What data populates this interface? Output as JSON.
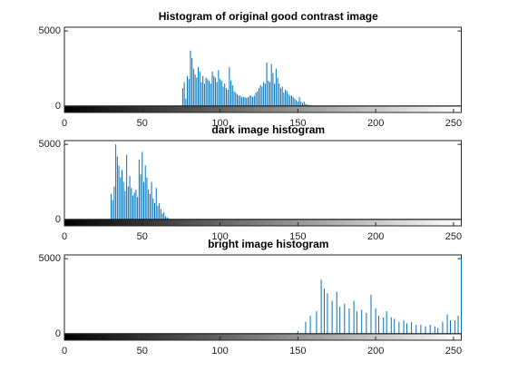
{
  "chart_data": [
    {
      "type": "stem",
      "title": "Histogram of original good contrast image",
      "x": [
        76,
        77,
        78,
        79,
        80,
        81,
        82,
        83,
        84,
        85,
        86,
        87,
        88,
        89,
        90,
        91,
        92,
        93,
        94,
        95,
        96,
        97,
        98,
        99,
        100,
        101,
        102,
        103,
        104,
        105,
        106,
        107,
        108,
        109,
        110,
        111,
        112,
        113,
        114,
        115,
        116,
        117,
        118,
        119,
        120,
        121,
        122,
        123,
        124,
        125,
        126,
        127,
        128,
        129,
        130,
        131,
        132,
        133,
        134,
        135,
        136,
        137,
        138,
        139,
        140,
        141,
        142,
        143,
        144,
        145,
        146,
        147,
        148,
        149,
        150,
        151,
        152,
        153,
        154,
        155,
        156,
        157,
        158,
        159,
        160
      ],
      "values": [
        1200,
        1600,
        500,
        2000,
        1800,
        3700,
        3200,
        2500,
        2100,
        1900,
        2600,
        2300,
        1600,
        2000,
        1500,
        1900,
        1800,
        1700,
        1500,
        2300,
        2000,
        1900,
        1600,
        2400,
        1800,
        1700,
        1300,
        1500,
        1200,
        1100,
        2600,
        1700,
        1400,
        1000,
        900,
        800,
        700,
        700,
        600,
        600,
        600,
        550,
        600,
        700,
        700,
        600,
        700,
        900,
        1000,
        1200,
        1400,
        1300,
        1600,
        1500,
        2900,
        1700,
        1600,
        2800,
        2200,
        1500,
        2500,
        1900,
        1500,
        1200,
        1300,
        900,
        1100,
        1000,
        800,
        700,
        700,
        600,
        500,
        400,
        300,
        600,
        300,
        200,
        300,
        150,
        100,
        80,
        60,
        40,
        20
      ],
      "color": "#0072bd",
      "xlim": [
        0,
        255
      ],
      "ylim": [
        0,
        5250
      ],
      "xticks": [
        0,
        50,
        100,
        150,
        200,
        250
      ],
      "yticks": [
        0,
        5000
      ]
    },
    {
      "type": "stem",
      "title": "dark image histogram",
      "x": [
        30,
        31,
        32,
        33,
        34,
        35,
        36,
        37,
        38,
        39,
        40,
        41,
        42,
        43,
        44,
        45,
        46,
        47,
        48,
        49,
        50,
        51,
        52,
        53,
        54,
        55,
        56,
        57,
        58,
        59,
        60,
        61,
        62,
        63,
        64,
        65,
        66,
        67,
        68
      ],
      "values": [
        1700,
        1300,
        2200,
        5000,
        4200,
        3600,
        2800,
        3300,
        2500,
        1900,
        4300,
        2200,
        2900,
        2100,
        1600,
        1800,
        2000,
        1500,
        4000,
        3000,
        4500,
        2500,
        3600,
        2800,
        2000,
        1700,
        2500,
        1400,
        1100,
        2100,
        900,
        1100,
        700,
        400,
        500,
        200,
        150,
        80,
        40
      ],
      "color": "#0072bd",
      "xlim": [
        0,
        255
      ],
      "ylim": [
        0,
        5250
      ],
      "xticks": [
        0,
        50,
        100,
        150,
        200,
        250
      ],
      "yticks": [
        0,
        5000
      ]
    },
    {
      "type": "stem",
      "title": "bright image histogram",
      "x": [
        150,
        155,
        158,
        162,
        165,
        167,
        169,
        172,
        175,
        177,
        180,
        183,
        186,
        188,
        191,
        194,
        197,
        200,
        202,
        205,
        207,
        210,
        212,
        215,
        218,
        220,
        223,
        226,
        229,
        232,
        235,
        238,
        240,
        243,
        246,
        248,
        251,
        253,
        255
      ],
      "values": [
        200,
        800,
        1200,
        1500,
        3600,
        3000,
        2700,
        2200,
        2800,
        1800,
        2000,
        1700,
        2200,
        1500,
        1600,
        1400,
        2600,
        1700,
        1200,
        1100,
        1500,
        1100,
        1000,
        800,
        900,
        700,
        800,
        600,
        600,
        500,
        600,
        500,
        400,
        800,
        1300,
        900,
        900,
        1200,
        5000
      ],
      "color": "#0072bd",
      "xlim": [
        0,
        255
      ],
      "ylim": [
        0,
        5250
      ],
      "xticks": [
        0,
        50,
        100,
        150,
        200,
        250
      ],
      "yticks": [
        0,
        5000
      ]
    }
  ]
}
